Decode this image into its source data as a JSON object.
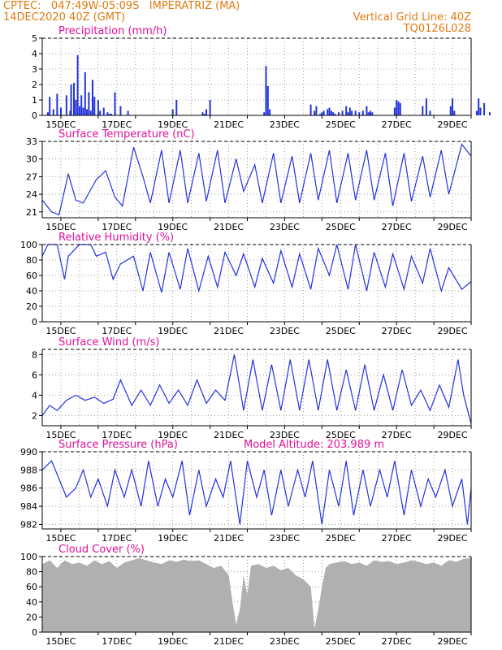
{
  "header": {
    "left_line1": "CPTEC:   047:49W-05:09S   IMPERATRIZ (MA)",
    "left_line2": "14DEC2020 40Z (GMT)",
    "right_line1": "Vertical Grid Line: 40Z",
    "right_line2": "TQ0126L028"
  },
  "colors": {
    "line": "#2233dd",
    "bar": "#2233dd",
    "cloud": "#b0b0b0",
    "title": "#e0109a",
    "header": "#e07a10"
  },
  "x_tick_labels": [
    "15DEC",
    "17DEC",
    "19DEC",
    "21DEC",
    "23DEC",
    "25DEC",
    "27DEC",
    "29DEC"
  ],
  "chart_data": [
    {
      "type": "bar",
      "title": "Precipitation (mm/h)",
      "x": [
        0.3,
        0.4,
        0.6,
        0.8,
        1.0,
        1.3,
        1.5,
        1.55,
        1.7,
        1.8,
        1.9,
        2.0,
        2.1,
        2.2,
        2.3,
        2.4,
        2.5,
        2.6,
        2.7,
        2.8,
        3.0,
        3.1,
        3.3,
        3.5,
        3.6,
        3.7,
        3.9,
        4.2,
        4.6,
        7.0,
        7.2,
        8.6,
        8.7,
        8.8,
        9.0,
        11.9,
        12.0,
        12.1,
        12.2,
        14.4,
        14.6,
        14.7,
        14.9,
        15.0,
        15.1,
        15.3,
        15.4,
        15.5,
        15.6,
        15.7,
        15.9,
        16.1,
        16.3,
        16.4,
        16.5,
        16.6,
        16.8,
        17.0,
        17.2,
        17.4,
        17.5,
        17.6,
        17.7,
        18.9,
        19.0,
        19.1,
        19.2,
        20.4,
        20.6,
        20.8,
        21.9,
        22.0,
        22.1,
        23.3,
        23.4,
        23.5,
        23.7,
        24.0,
        25.4,
        25.5
      ],
      "values": [
        0.2,
        1.2,
        0.4,
        1.4,
        0.5,
        1.3,
        0.3,
        2.0,
        2.1,
        1.0,
        3.9,
        0.6,
        1.3,
        0.5,
        2.8,
        0.4,
        1.5,
        0.3,
        2.3,
        1.2,
        1.0,
        0.3,
        0.5,
        0.2,
        0.1,
        0.1,
        1.5,
        0.6,
        0.3,
        0.4,
        1.0,
        0.2,
        0.1,
        0.4,
        1.0,
        0.2,
        3.2,
        1.9,
        0.4,
        0.7,
        0.3,
        0.6,
        0.1,
        0.2,
        0.3,
        0.4,
        0.5,
        0.3,
        0.2,
        0.1,
        0.2,
        0.3,
        0.6,
        0.2,
        0.5,
        0.3,
        0.3,
        0.2,
        0.3,
        0.6,
        0.2,
        0.3,
        0.2,
        0.5,
        1.0,
        0.9,
        0.8,
        0.6,
        1.1,
        0.3,
        0.6,
        1.1,
        0.3,
        0.3,
        1.1,
        0.5,
        0.8,
        0.2,
        0.3,
        0.4
      ],
      "ylim": [
        0,
        5
      ],
      "yticks": [
        "0",
        "1",
        "2",
        "3",
        "4",
        "5"
      ]
    },
    {
      "type": "line",
      "title": "Surface Temperature (nC)",
      "x": [
        0,
        0.5,
        0.9,
        1.4,
        1.8,
        2.2,
        2.9,
        3.4,
        3.9,
        4.3,
        4.9,
        5.4,
        5.8,
        6.4,
        6.8,
        7.4,
        7.8,
        8.4,
        8.8,
        9.4,
        9.8,
        10.4,
        10.8,
        11.4,
        11.8,
        12.4,
        12.8,
        13.4,
        13.8,
        14.4,
        14.8,
        15.4,
        15.8,
        16.4,
        16.8,
        17.4,
        17.8,
        18.4,
        18.8,
        19.4,
        19.8,
        20.4,
        20.8,
        21.4,
        21.8,
        22.5,
        23.0
      ],
      "values": [
        23,
        21.0,
        20.5,
        27.5,
        23.0,
        22.5,
        26.5,
        28,
        23.5,
        22.0,
        32,
        27,
        22.5,
        31.5,
        22.5,
        31.5,
        22.5,
        31,
        22.8,
        31.5,
        22.5,
        30,
        24.5,
        29,
        22.5,
        31,
        22.5,
        30.5,
        22.5,
        31,
        23.0,
        31.5,
        22.5,
        31,
        23.0,
        31.5,
        23.0,
        31,
        22.0,
        31,
        22.8,
        30.5,
        23.5,
        31.5,
        24.0,
        32.5,
        30.5
      ],
      "ylim": [
        20,
        33
      ],
      "yticks": [
        "21",
        "24",
        "27",
        "30",
        "33"
      ]
    },
    {
      "type": "line",
      "title": "Relative Humidity (%)",
      "x": [
        0,
        0.3,
        0.8,
        1.2,
        1.4,
        2.0,
        2.6,
        2.9,
        3.4,
        3.8,
        4.2,
        4.9,
        5.4,
        5.8,
        6.4,
        6.8,
        7.4,
        7.8,
        8.4,
        8.9,
        9.4,
        9.8,
        10.4,
        10.8,
        11.4,
        11.8,
        12.4,
        12.8,
        13.4,
        13.8,
        14.4,
        14.8,
        15.4,
        15.8,
        16.4,
        16.8,
        17.4,
        17.8,
        18.4,
        18.8,
        19.4,
        19.8,
        20.4,
        20.8,
        21.4,
        21.8,
        22.5,
        23.0
      ],
      "values": [
        85,
        100,
        100,
        55,
        85,
        100,
        100,
        85,
        90,
        55,
        75,
        85,
        40,
        90,
        38,
        90,
        42,
        95,
        40,
        85,
        45,
        90,
        60,
        88,
        45,
        82,
        50,
        92,
        45,
        88,
        42,
        95,
        60,
        100,
        42,
        100,
        40,
        90,
        45,
        88,
        42,
        85,
        50,
        95,
        40,
        70,
        42,
        52
      ],
      "ylim": [
        0,
        100
      ],
      "yticks": [
        "0",
        "20",
        "40",
        "60",
        "80",
        "100"
      ]
    },
    {
      "type": "line",
      "title": "Surface Wind (m/s)",
      "x": [
        0,
        0.4,
        0.8,
        1.3,
        1.8,
        2.3,
        2.8,
        3.3,
        3.8,
        4.2,
        4.8,
        5.3,
        5.8,
        6.3,
        6.8,
        7.3,
        7.8,
        8.3,
        8.8,
        9.3,
        9.8,
        10.3,
        10.8,
        11.3,
        11.8,
        12.3,
        12.8,
        13.3,
        13.8,
        14.3,
        14.8,
        15.3,
        15.8,
        16.3,
        16.8,
        17.3,
        17.8,
        18.3,
        18.8,
        19.3,
        19.8,
        20.3,
        20.8,
        21.3,
        21.8,
        22.3,
        22.6,
        23.0
      ],
      "values": [
        2.0,
        3.0,
        2.5,
        3.5,
        4.0,
        3.5,
        3.8,
        3.2,
        3.6,
        5.5,
        3.0,
        4.5,
        3.0,
        5.0,
        3.2,
        4.5,
        3.0,
        5.5,
        3.2,
        4.5,
        3.5,
        8.0,
        2.5,
        7.5,
        2.5,
        7.0,
        2.5,
        7.5,
        2.5,
        7.5,
        2.5,
        7.5,
        2.5,
        6.5,
        2.5,
        7.0,
        2.5,
        6.0,
        2.5,
        6.5,
        3.0,
        4.5,
        2.5,
        5.0,
        2.8,
        7.5,
        4.0,
        1.2
      ],
      "ylim": [
        1,
        8.5
      ],
      "yticks": [
        "2",
        "4",
        "6",
        "8"
      ]
    },
    {
      "type": "line",
      "title": "Surface Pressure (hPa)",
      "annotation": "Model Altitude: 203.989 m",
      "x": [
        0,
        0.5,
        0.9,
        1.3,
        1.8,
        2.2,
        2.6,
        3.0,
        3.5,
        3.9,
        4.4,
        4.8,
        5.3,
        5.7,
        6.2,
        6.6,
        7.0,
        7.5,
        7.9,
        8.4,
        8.8,
        9.3,
        9.7,
        10.1,
        10.6,
        11.0,
        11.5,
        11.9,
        12.3,
        12.8,
        13.2,
        13.7,
        14.1,
        14.5,
        15.0,
        15.4,
        15.9,
        16.3,
        16.7,
        17.2,
        17.6,
        18.1,
        18.5,
        18.9,
        19.4,
        19.8,
        20.3,
        20.7,
        21.1,
        21.6,
        22.0,
        22.5,
        22.8,
        23.0
      ],
      "values": [
        988,
        989,
        987,
        985,
        986,
        988,
        985,
        987,
        984,
        988,
        985,
        988,
        984,
        989,
        984,
        987,
        985,
        989,
        983,
        988,
        984,
        987,
        985,
        989,
        982,
        989,
        985,
        988,
        983,
        988,
        984,
        988,
        985,
        989,
        982,
        988,
        984,
        989,
        983,
        988,
        984,
        988,
        985,
        989,
        983,
        988,
        984,
        987,
        985,
        988,
        984,
        987,
        982,
        986
      ],
      "ylim": [
        981.5,
        990
      ],
      "yticks": [
        "982",
        "984",
        "986",
        "988",
        "990"
      ]
    },
    {
      "type": "area",
      "title": "Cloud Cover (%)",
      "x": [
        0,
        0.4,
        0.8,
        1.2,
        1.6,
        2.0,
        2.4,
        2.8,
        3.2,
        3.6,
        4.0,
        4.4,
        4.8,
        5.2,
        5.6,
        6.0,
        6.4,
        6.8,
        7.2,
        7.6,
        8.0,
        8.4,
        8.8,
        9.2,
        9.6,
        10.0,
        10.2,
        10.4,
        10.6,
        10.8,
        11.0,
        11.2,
        11.6,
        12.0,
        12.4,
        12.8,
        13.2,
        13.6,
        14.0,
        14.4,
        14.6,
        14.8,
        15.0,
        15.2,
        15.4,
        15.8,
        16.2,
        16.6,
        17.0,
        17.4,
        17.8,
        18.2,
        18.6,
        19.0,
        19.4,
        19.8,
        20.2,
        20.6,
        21.0,
        21.4,
        21.8,
        22.2,
        22.6,
        23.0
      ],
      "values": [
        90,
        95,
        85,
        95,
        90,
        92,
        88,
        95,
        90,
        94,
        85,
        92,
        95,
        98,
        95,
        92,
        90,
        95,
        93,
        96,
        94,
        95,
        90,
        85,
        88,
        75,
        40,
        10,
        30,
        75,
        50,
        88,
        90,
        85,
        88,
        82,
        85,
        75,
        70,
        60,
        5,
        30,
        60,
        85,
        90,
        92,
        94,
        90,
        92,
        88,
        95,
        93,
        94,
        90,
        92,
        95,
        93,
        90,
        92,
        88,
        95,
        93,
        97,
        98
      ],
      "ylim": [
        0,
        100
      ],
      "yticks": [
        "0",
        "20",
        "40",
        "60",
        "80",
        "100"
      ]
    }
  ]
}
